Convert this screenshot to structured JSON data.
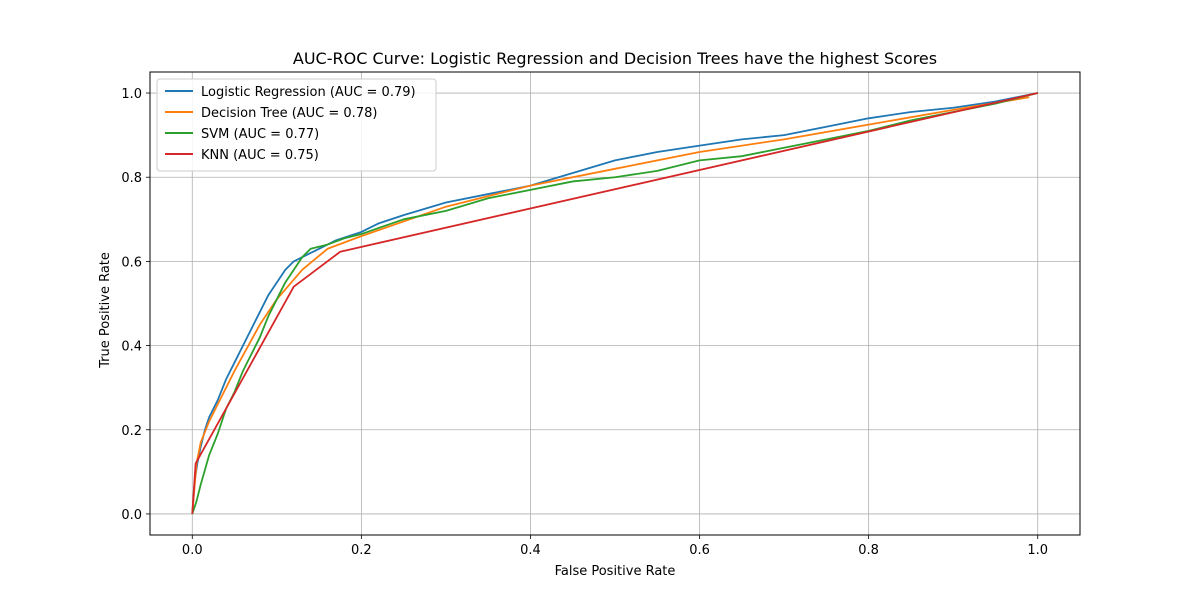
{
  "chart_data": {
    "type": "line",
    "title": "AUC-ROC Curve: Logistic Regression and Decision Trees have the highest Scores",
    "xlabel": "False Positive Rate",
    "ylabel": "True Positive Rate",
    "xlim": [
      -0.05,
      1.05
    ],
    "ylim": [
      -0.05,
      1.05
    ],
    "xticks": [
      "0.0",
      "0.2",
      "0.4",
      "0.6",
      "0.8",
      "1.0"
    ],
    "yticks": [
      "0.0",
      "0.2",
      "0.4",
      "0.6",
      "0.8",
      "1.0"
    ],
    "grid": true,
    "legend_position": "upper-left",
    "series": [
      {
        "name": "Logistic Regression (AUC = 0.79)",
        "color": "#1f77b4",
        "x": [
          0,
          0.003,
          0.006,
          0.01,
          0.015,
          0.02,
          0.03,
          0.04,
          0.05,
          0.06,
          0.07,
          0.08,
          0.09,
          0.1,
          0.11,
          0.12,
          0.13,
          0.14,
          0.15,
          0.17,
          0.2,
          0.22,
          0.25,
          0.3,
          0.35,
          0.4,
          0.45,
          0.5,
          0.55,
          0.6,
          0.65,
          0.7,
          0.75,
          0.8,
          0.85,
          0.9,
          0.95,
          1.0
        ],
        "y": [
          0,
          0.08,
          0.12,
          0.16,
          0.2,
          0.23,
          0.27,
          0.32,
          0.36,
          0.4,
          0.44,
          0.48,
          0.52,
          0.55,
          0.58,
          0.6,
          0.61,
          0.62,
          0.63,
          0.65,
          0.67,
          0.69,
          0.71,
          0.74,
          0.76,
          0.78,
          0.81,
          0.84,
          0.86,
          0.875,
          0.89,
          0.9,
          0.92,
          0.94,
          0.955,
          0.965,
          0.98,
          1.0
        ]
      },
      {
        "name": "Decision Tree (AUC = 0.78)",
        "color": "#ff7f0e",
        "x": [
          0,
          0.005,
          0.01,
          0.02,
          0.03,
          0.05,
          0.08,
          0.1,
          0.13,
          0.16,
          0.2,
          0.3,
          0.4,
          0.5,
          0.6,
          0.7,
          0.8,
          0.9,
          0.99
        ],
        "y": [
          0,
          0.12,
          0.17,
          0.22,
          0.26,
          0.34,
          0.45,
          0.51,
          0.58,
          0.63,
          0.66,
          0.73,
          0.78,
          0.82,
          0.86,
          0.89,
          0.925,
          0.96,
          0.99
        ]
      },
      {
        "name": "SVM (AUC = 0.77)",
        "color": "#2ca02c",
        "x": [
          0,
          0.005,
          0.01,
          0.02,
          0.03,
          0.04,
          0.05,
          0.06,
          0.07,
          0.08,
          0.09,
          0.1,
          0.11,
          0.12,
          0.13,
          0.14,
          0.16,
          0.18,
          0.2,
          0.25,
          0.3,
          0.35,
          0.4,
          0.45,
          0.5,
          0.55,
          0.6,
          0.65,
          0.7,
          0.75,
          0.8,
          0.85,
          0.9,
          0.95,
          1.0
        ],
        "y": [
          0,
          0.03,
          0.07,
          0.14,
          0.19,
          0.25,
          0.29,
          0.34,
          0.38,
          0.42,
          0.47,
          0.51,
          0.55,
          0.58,
          0.61,
          0.63,
          0.64,
          0.655,
          0.665,
          0.7,
          0.72,
          0.75,
          0.77,
          0.79,
          0.8,
          0.815,
          0.84,
          0.85,
          0.87,
          0.89,
          0.91,
          0.935,
          0.955,
          0.975,
          1.0
        ]
      },
      {
        "name": "KNN (AUC = 0.75)",
        "color": "#d62728",
        "x": [
          0,
          0.004,
          0.12,
          0.175,
          1.0
        ],
        "y": [
          0,
          0.12,
          0.54,
          0.623,
          1.0
        ]
      }
    ]
  }
}
